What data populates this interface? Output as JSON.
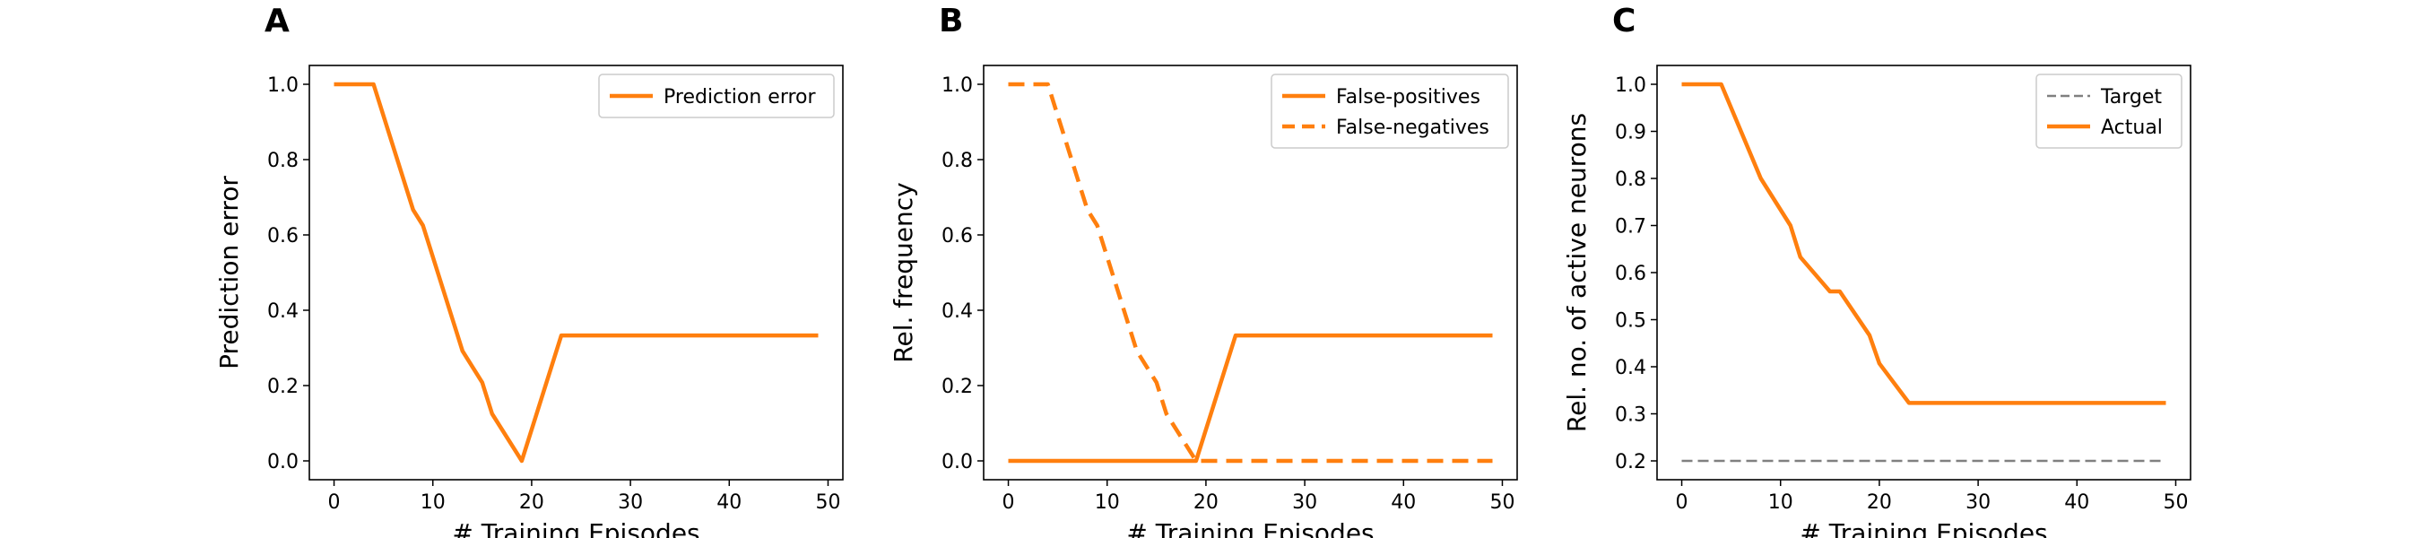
{
  "colors": {
    "accent": "#ff7f0e",
    "target": "#808080",
    "frame": "#000000"
  },
  "chart_data": [
    {
      "type": "line",
      "panel_label": "A",
      "xlabel": "# Training Episodes",
      "ylabel": "Prediction error",
      "xlim": [
        -2.5,
        51.5
      ],
      "ylim": [
        -0.05,
        1.05
      ],
      "xticks": [
        0,
        10,
        20,
        30,
        40,
        50
      ],
      "yticks": [
        "0.0",
        "0.2",
        "0.4",
        "0.6",
        "0.8",
        "1.0"
      ],
      "legend": "top-right",
      "series": [
        {
          "name": "Prediction error",
          "style": "solid",
          "x": [
            0,
            4,
            8,
            9,
            13,
            15,
            16,
            19,
            23,
            49
          ],
          "y": [
            1.0,
            1.0,
            0.667,
            0.625,
            0.292,
            0.208,
            0.125,
            0.0,
            0.333,
            0.333
          ]
        }
      ]
    },
    {
      "type": "line",
      "panel_label": "B",
      "xlabel": "# Training Episodes",
      "ylabel": "Rel. frequency",
      "xlim": [
        -2.5,
        51.5
      ],
      "ylim": [
        -0.05,
        1.05
      ],
      "xticks": [
        0,
        10,
        20,
        30,
        40,
        50
      ],
      "yticks": [
        "0.0",
        "0.2",
        "0.4",
        "0.6",
        "0.8",
        "1.0"
      ],
      "legend": "top-right",
      "series": [
        {
          "name": "False-positives",
          "style": "solid",
          "x": [
            0,
            19,
            23,
            49
          ],
          "y": [
            0.0,
            0.0,
            0.333,
            0.333
          ]
        },
        {
          "name": "False-negatives",
          "style": "dashed",
          "x": [
            0,
            4,
            8,
            9,
            13,
            15,
            16,
            19,
            49
          ],
          "y": [
            1.0,
            1.0,
            0.667,
            0.625,
            0.292,
            0.208,
            0.125,
            0.0,
            0.0
          ]
        }
      ]
    },
    {
      "type": "line",
      "panel_label": "C",
      "xlabel": "# Training Episodes",
      "ylabel": "Rel. no. of active neurons",
      "xlim": [
        -2.5,
        51.5
      ],
      "ylim": [
        0.16,
        1.04
      ],
      "xticks": [
        0,
        10,
        20,
        30,
        40,
        50
      ],
      "yticks": [
        "0.2",
        "0.3",
        "0.4",
        "0.5",
        "0.6",
        "0.7",
        "0.8",
        "0.9",
        "1.0"
      ],
      "legend": "top-right",
      "series": [
        {
          "name": "Target",
          "style": "thin-dashed",
          "x": [
            0,
            49
          ],
          "y": [
            0.2,
            0.2
          ]
        },
        {
          "name": "Actual",
          "style": "solid",
          "x": [
            0,
            4,
            8,
            11,
            12,
            15,
            16,
            19,
            20,
            23,
            49
          ],
          "y": [
            1.0,
            1.0,
            0.8,
            0.7,
            0.633,
            0.56,
            0.56,
            0.467,
            0.407,
            0.323,
            0.323
          ]
        }
      ]
    }
  ]
}
